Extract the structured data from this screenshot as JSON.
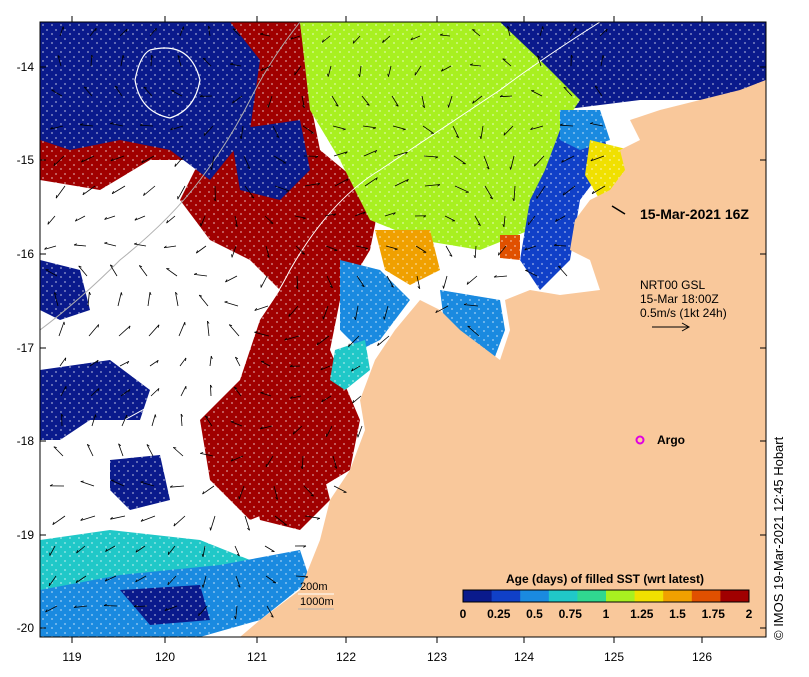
{
  "map": {
    "lon_ticks": [
      "119",
      "120",
      "121",
      "122",
      "123",
      "124",
      "125",
      "126"
    ],
    "lat_ticks": [
      "-14",
      "-15",
      "-16",
      "-17",
      "-18",
      "-19",
      "-20"
    ],
    "timestamp_label": "15-Mar-2021 16Z",
    "current_info": [
      "NRT00 GSL",
      "15-Mar 18:00Z",
      "0.5m/s (1kt 24h)"
    ],
    "argo_label": "Argo",
    "isobath_labels": [
      "200m",
      "1000m"
    ],
    "credit": "© IMOS 19-Mar-2021 12:45 Hobart",
    "colors": {
      "land": "#f9c89b",
      "no_data": "#ffffff",
      "argo_marker": "#e000e0",
      "isobath_200": "#ffffff",
      "isobath_1000": "#b0b0b0"
    }
  },
  "legend": {
    "title": "Age (days) of filled SST (wrt latest)",
    "tick_labels": [
      "0",
      "0.25",
      "0.5",
      "0.75",
      "1",
      "1.25",
      "1.5",
      "1.75",
      "2"
    ],
    "colors": [
      "#0a1a8c",
      "#1040c8",
      "#1a8ae0",
      "#20c8c8",
      "#30d890",
      "#a8f020",
      "#f0e000",
      "#f0a000",
      "#e05000",
      "#a00000"
    ]
  }
}
